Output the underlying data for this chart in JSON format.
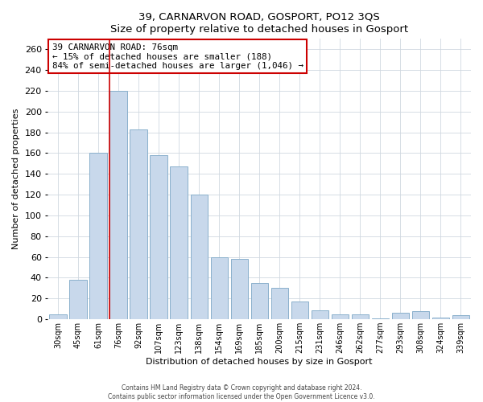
{
  "title": "39, CARNARVON ROAD, GOSPORT, PO12 3QS",
  "subtitle": "Size of property relative to detached houses in Gosport",
  "xlabel": "Distribution of detached houses by size in Gosport",
  "ylabel": "Number of detached properties",
  "bar_labels": [
    "30sqm",
    "45sqm",
    "61sqm",
    "76sqm",
    "92sqm",
    "107sqm",
    "123sqm",
    "138sqm",
    "154sqm",
    "169sqm",
    "185sqm",
    "200sqm",
    "215sqm",
    "231sqm",
    "246sqm",
    "262sqm",
    "277sqm",
    "293sqm",
    "308sqm",
    "324sqm",
    "339sqm"
  ],
  "bar_values": [
    5,
    38,
    160,
    220,
    183,
    158,
    147,
    120,
    60,
    58,
    35,
    30,
    17,
    9,
    5,
    5,
    1,
    6,
    8,
    2,
    4
  ],
  "bar_color": "#c8d8eb",
  "bar_edge_color": "#8ab0cc",
  "highlight_index": 3,
  "highlight_color": "#cc0000",
  "ylim": [
    0,
    270
  ],
  "yticks": [
    0,
    20,
    40,
    60,
    80,
    100,
    120,
    140,
    160,
    180,
    200,
    220,
    240,
    260
  ],
  "annotation_title": "39 CARNARVON ROAD: 76sqm",
  "annotation_line1": "← 15% of detached houses are smaller (188)",
  "annotation_line2": "84% of semi-detached houses are larger (1,046) →",
  "footer1": "Contains HM Land Registry data © Crown copyright and database right 2024.",
  "footer2": "Contains public sector information licensed under the Open Government Licence v3.0."
}
